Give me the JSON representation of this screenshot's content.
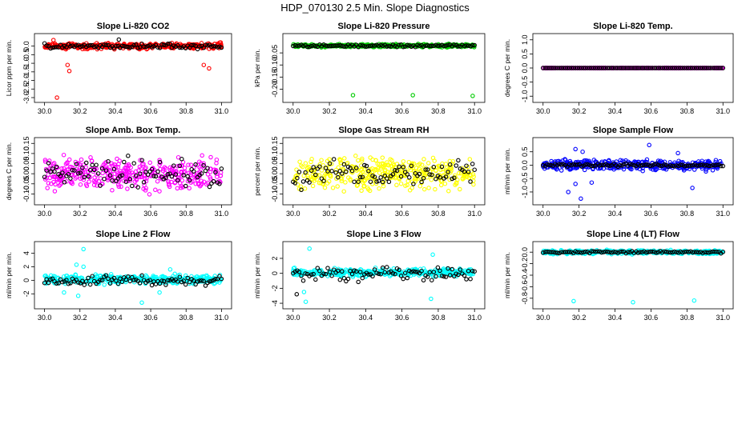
{
  "figure": {
    "title": "HDP_070130  2.5 Min. Slope Diagnostics"
  },
  "chart_data": [
    {
      "type": "scatter",
      "title": "Slope Li-820 CO2",
      "ylabel": "Licor ppm per min.",
      "xlim": [
        29.97,
        31.03
      ],
      "ylim": [
        -3.0,
        0.45
      ],
      "xticks": [
        30.0,
        30.2,
        30.4,
        30.6,
        30.8,
        31.0
      ],
      "xtick_labels": [
        "30.0",
        "30.2",
        "30.4",
        "30.6",
        "30.8",
        "31.0"
      ],
      "yticks": [
        0.0,
        -0.5,
        -1.0,
        -1.5,
        -2.0,
        -2.5,
        -3.0
      ],
      "ytick_labels": [
        "0.0",
        "-0.5",
        "-1.0",
        "-1.5",
        "-2.0",
        "-2.5",
        "-3.0"
      ],
      "series": [
        {
          "color": "#ff0000",
          "base": 0.0,
          "spread": 0.14,
          "outliers": [
            [
              30.07,
              -3.0
            ],
            [
              30.14,
              -1.45
            ],
            [
              30.13,
              -1.1
            ],
            [
              30.9,
              -1.1
            ],
            [
              30.93,
              -1.3
            ],
            [
              30.05,
              0.35
            ]
          ]
        },
        {
          "color": "#000000",
          "base": 0.0,
          "spread": 0.12,
          "outliers": [
            [
              30.42,
              0.38
            ]
          ]
        }
      ]
    },
    {
      "type": "scatter",
      "title": "Slope Li-820 Pressure",
      "ylabel": "kPa per min.",
      "xlim": [
        29.97,
        31.03
      ],
      "ylim": [
        -0.235,
        0.01
      ],
      "xticks": [
        30.0,
        30.2,
        30.4,
        30.6,
        30.8,
        31.0
      ],
      "xtick_labels": [
        "30.0",
        "30.2",
        "30.4",
        "30.6",
        "30.8",
        "31.0"
      ],
      "yticks": [
        -0.05,
        -0.1,
        -0.15,
        -0.2
      ],
      "ytick_labels": [
        "-0.05",
        "-0.10",
        "-0.15",
        "-0.20"
      ],
      "series": [
        {
          "color": "#00cc00",
          "base": -0.02,
          "spread": 0.005,
          "outliers": [
            [
              30.33,
              -0.225
            ],
            [
              30.66,
              -0.225
            ],
            [
              30.99,
              -0.228
            ]
          ]
        },
        {
          "color": "#000000",
          "base": -0.02,
          "spread": 0.004,
          "outliers": []
        }
      ]
    },
    {
      "type": "scatter",
      "title": "Slope Li-820 Temp.",
      "ylabel": "degrees C per min.",
      "xlim": [
        29.97,
        31.03
      ],
      "ylim": [
        -1.05,
        1.05
      ],
      "xticks": [
        30.0,
        30.2,
        30.4,
        30.6,
        30.8,
        31.0
      ],
      "xtick_labels": [
        "30.0",
        "30.2",
        "30.4",
        "30.6",
        "30.8",
        "31.0"
      ],
      "yticks": [
        -1.0,
        -0.5,
        0.0,
        0.5,
        1.0
      ],
      "ytick_labels": [
        "-1.0",
        "-0.5",
        "0.0",
        "0.5",
        "1.0"
      ],
      "series": [
        {
          "color": "#ff00ff",
          "base": 0.0,
          "spread": 0.0,
          "outliers": []
        },
        {
          "color": "#000000",
          "base": 0.0,
          "spread": 0.0,
          "outliers": []
        }
      ]
    },
    {
      "type": "scatter",
      "title": "Slope Amb. Box Temp.",
      "ylabel": "degrees C per min.",
      "xlim": [
        29.97,
        31.03
      ],
      "ylim": [
        -0.13,
        0.155
      ],
      "xticks": [
        30.0,
        30.2,
        30.4,
        30.6,
        30.8,
        31.0
      ],
      "xtick_labels": [
        "30.0",
        "30.2",
        "30.4",
        "30.6",
        "30.8",
        "31.0"
      ],
      "yticks": [
        -0.1,
        -0.05,
        0.0,
        0.05,
        0.1,
        0.15
      ],
      "ytick_labels": [
        "-0.10",
        "-0.05",
        "0.00",
        "0.05",
        "0.10",
        "0.15"
      ],
      "series": [
        {
          "color": "#ff00ff",
          "base": 0.0,
          "spread": 0.06,
          "outliers": []
        },
        {
          "color": "#000000",
          "base": 0.0,
          "spread": 0.06,
          "outliers": []
        }
      ]
    },
    {
      "type": "scatter",
      "title": "Slope Gas Stream RH",
      "ylabel": "percent per min.",
      "xlim": [
        29.97,
        31.03
      ],
      "ylim": [
        -0.13,
        0.155
      ],
      "xticks": [
        30.0,
        30.2,
        30.4,
        30.6,
        30.8,
        31.0
      ],
      "xtick_labels": [
        "30.0",
        "30.2",
        "30.4",
        "30.6",
        "30.8",
        "31.0"
      ],
      "yticks": [
        -0.1,
        -0.05,
        0.0,
        0.05,
        0.1,
        0.15
      ],
      "ytick_labels": [
        "-0.10",
        "-0.05",
        "0.00",
        "0.05",
        "0.10",
        "0.15"
      ],
      "series": [
        {
          "color": "#ffff00",
          "base": 0.0,
          "spread": 0.06,
          "outliers": []
        },
        {
          "color": "#000000",
          "base": 0.0,
          "spread": 0.05,
          "outliers": []
        }
      ]
    },
    {
      "type": "scatter",
      "title": "Slope Sample Flow",
      "ylabel": "ml/min per min.",
      "xlim": [
        29.97,
        31.03
      ],
      "ylim": [
        -1.3,
        0.85
      ],
      "xticks": [
        30.0,
        30.2,
        30.4,
        30.6,
        30.8,
        31.0
      ],
      "xtick_labels": [
        "30.0",
        "30.2",
        "30.4",
        "30.6",
        "30.8",
        "31.0"
      ],
      "yticks": [
        -1.0,
        -0.5,
        0.0,
        0.5
      ],
      "ytick_labels": [
        "-1.0",
        "-0.5",
        "0.0",
        "0.5"
      ],
      "series": [
        {
          "color": "#0000ff",
          "base": 0.0,
          "spread": 0.14,
          "outliers": [
            [
              30.14,
              -1.0
            ],
            [
              30.18,
              -0.7
            ],
            [
              30.21,
              -1.25
            ],
            [
              30.27,
              -0.65
            ],
            [
              30.59,
              0.75
            ],
            [
              30.75,
              0.45
            ],
            [
              30.83,
              -0.85
            ],
            [
              30.18,
              0.6
            ],
            [
              30.22,
              0.5
            ]
          ]
        },
        {
          "color": "#000000",
          "base": 0.0,
          "spread": 0.04,
          "outliers": []
        }
      ]
    },
    {
      "type": "scatter",
      "title": "Slope Line 2 Flow",
      "ylabel": "ml/min per min.",
      "xlim": [
        29.97,
        31.03
      ],
      "ylim": [
        -3.5,
        5.0
      ],
      "xticks": [
        30.0,
        30.2,
        30.4,
        30.6,
        30.8,
        31.0
      ],
      "xtick_labels": [
        "30.0",
        "30.2",
        "30.4",
        "30.6",
        "30.8",
        "31.0"
      ],
      "yticks": [
        -2,
        0,
        2,
        4
      ],
      "ytick_labels": [
        "-2",
        "0",
        "2",
        "4"
      ],
      "series": [
        {
          "color": "#00ffff",
          "base": 0.1,
          "spread": 0.5,
          "outliers": [
            [
              30.22,
              4.6
            ],
            [
              30.55,
              -3.3
            ],
            [
              30.11,
              -1.8
            ],
            [
              30.19,
              -2.3
            ],
            [
              30.18,
              2.3
            ],
            [
              30.22,
              2.0
            ],
            [
              30.65,
              -1.8
            ],
            [
              30.71,
              1.6
            ]
          ]
        },
        {
          "color": "#000000",
          "base": 0.0,
          "spread": 0.6,
          "outliers": []
        }
      ]
    },
    {
      "type": "scatter",
      "title": "Slope Line 3 Flow",
      "ylabel": "ml/min per min.",
      "xlim": [
        29.97,
        31.03
      ],
      "ylim": [
        -4.1,
        3.6
      ],
      "xticks": [
        30.0,
        30.2,
        30.4,
        30.6,
        30.8,
        31.0
      ],
      "xtick_labels": [
        "30.0",
        "30.2",
        "30.4",
        "30.6",
        "30.8",
        "31.0"
      ],
      "yticks": [
        -4,
        -2,
        0,
        2
      ],
      "ytick_labels": [
        "-4",
        "-2",
        "0",
        "2"
      ],
      "series": [
        {
          "color": "#00ffff",
          "base": 0.1,
          "spread": 0.4,
          "outliers": [
            [
              30.07,
              -3.8
            ],
            [
              30.09,
              3.3
            ],
            [
              30.06,
              -2.5
            ],
            [
              30.76,
              -3.4
            ],
            [
              30.77,
              2.5
            ],
            [
              30.97,
              0.5
            ]
          ]
        },
        {
          "color": "#000000",
          "base": 0.0,
          "spread": 0.8,
          "outliers": [
            [
              30.02,
              -2.8
            ]
          ]
        }
      ]
    },
    {
      "type": "scatter",
      "title": "Slope Line 4 (LT) Flow",
      "ylabel": "ml/min per min.",
      "xlim": [
        29.97,
        31.03
      ],
      "ylim": [
        -0.9,
        0.1
      ],
      "xticks": [
        30.0,
        30.2,
        30.4,
        30.6,
        30.8,
        31.0
      ],
      "xtick_labels": [
        "30.0",
        "30.2",
        "30.4",
        "30.6",
        "30.8",
        "31.0"
      ],
      "yticks": [
        0.0,
        -0.2,
        -0.4,
        -0.6,
        -0.8
      ],
      "ytick_labels": [
        "0.0",
        "-0.2",
        "-0.4",
        "-0.6",
        "-0.8"
      ],
      "series": [
        {
          "color": "#00ffff",
          "base": 0.0,
          "spread": 0.025,
          "outliers": [
            [
              30.17,
              -0.85
            ],
            [
              30.5,
              -0.87
            ],
            [
              30.84,
              -0.84
            ]
          ]
        },
        {
          "color": "#000000",
          "base": 0.0,
          "spread": 0.015,
          "outliers": []
        }
      ]
    }
  ]
}
